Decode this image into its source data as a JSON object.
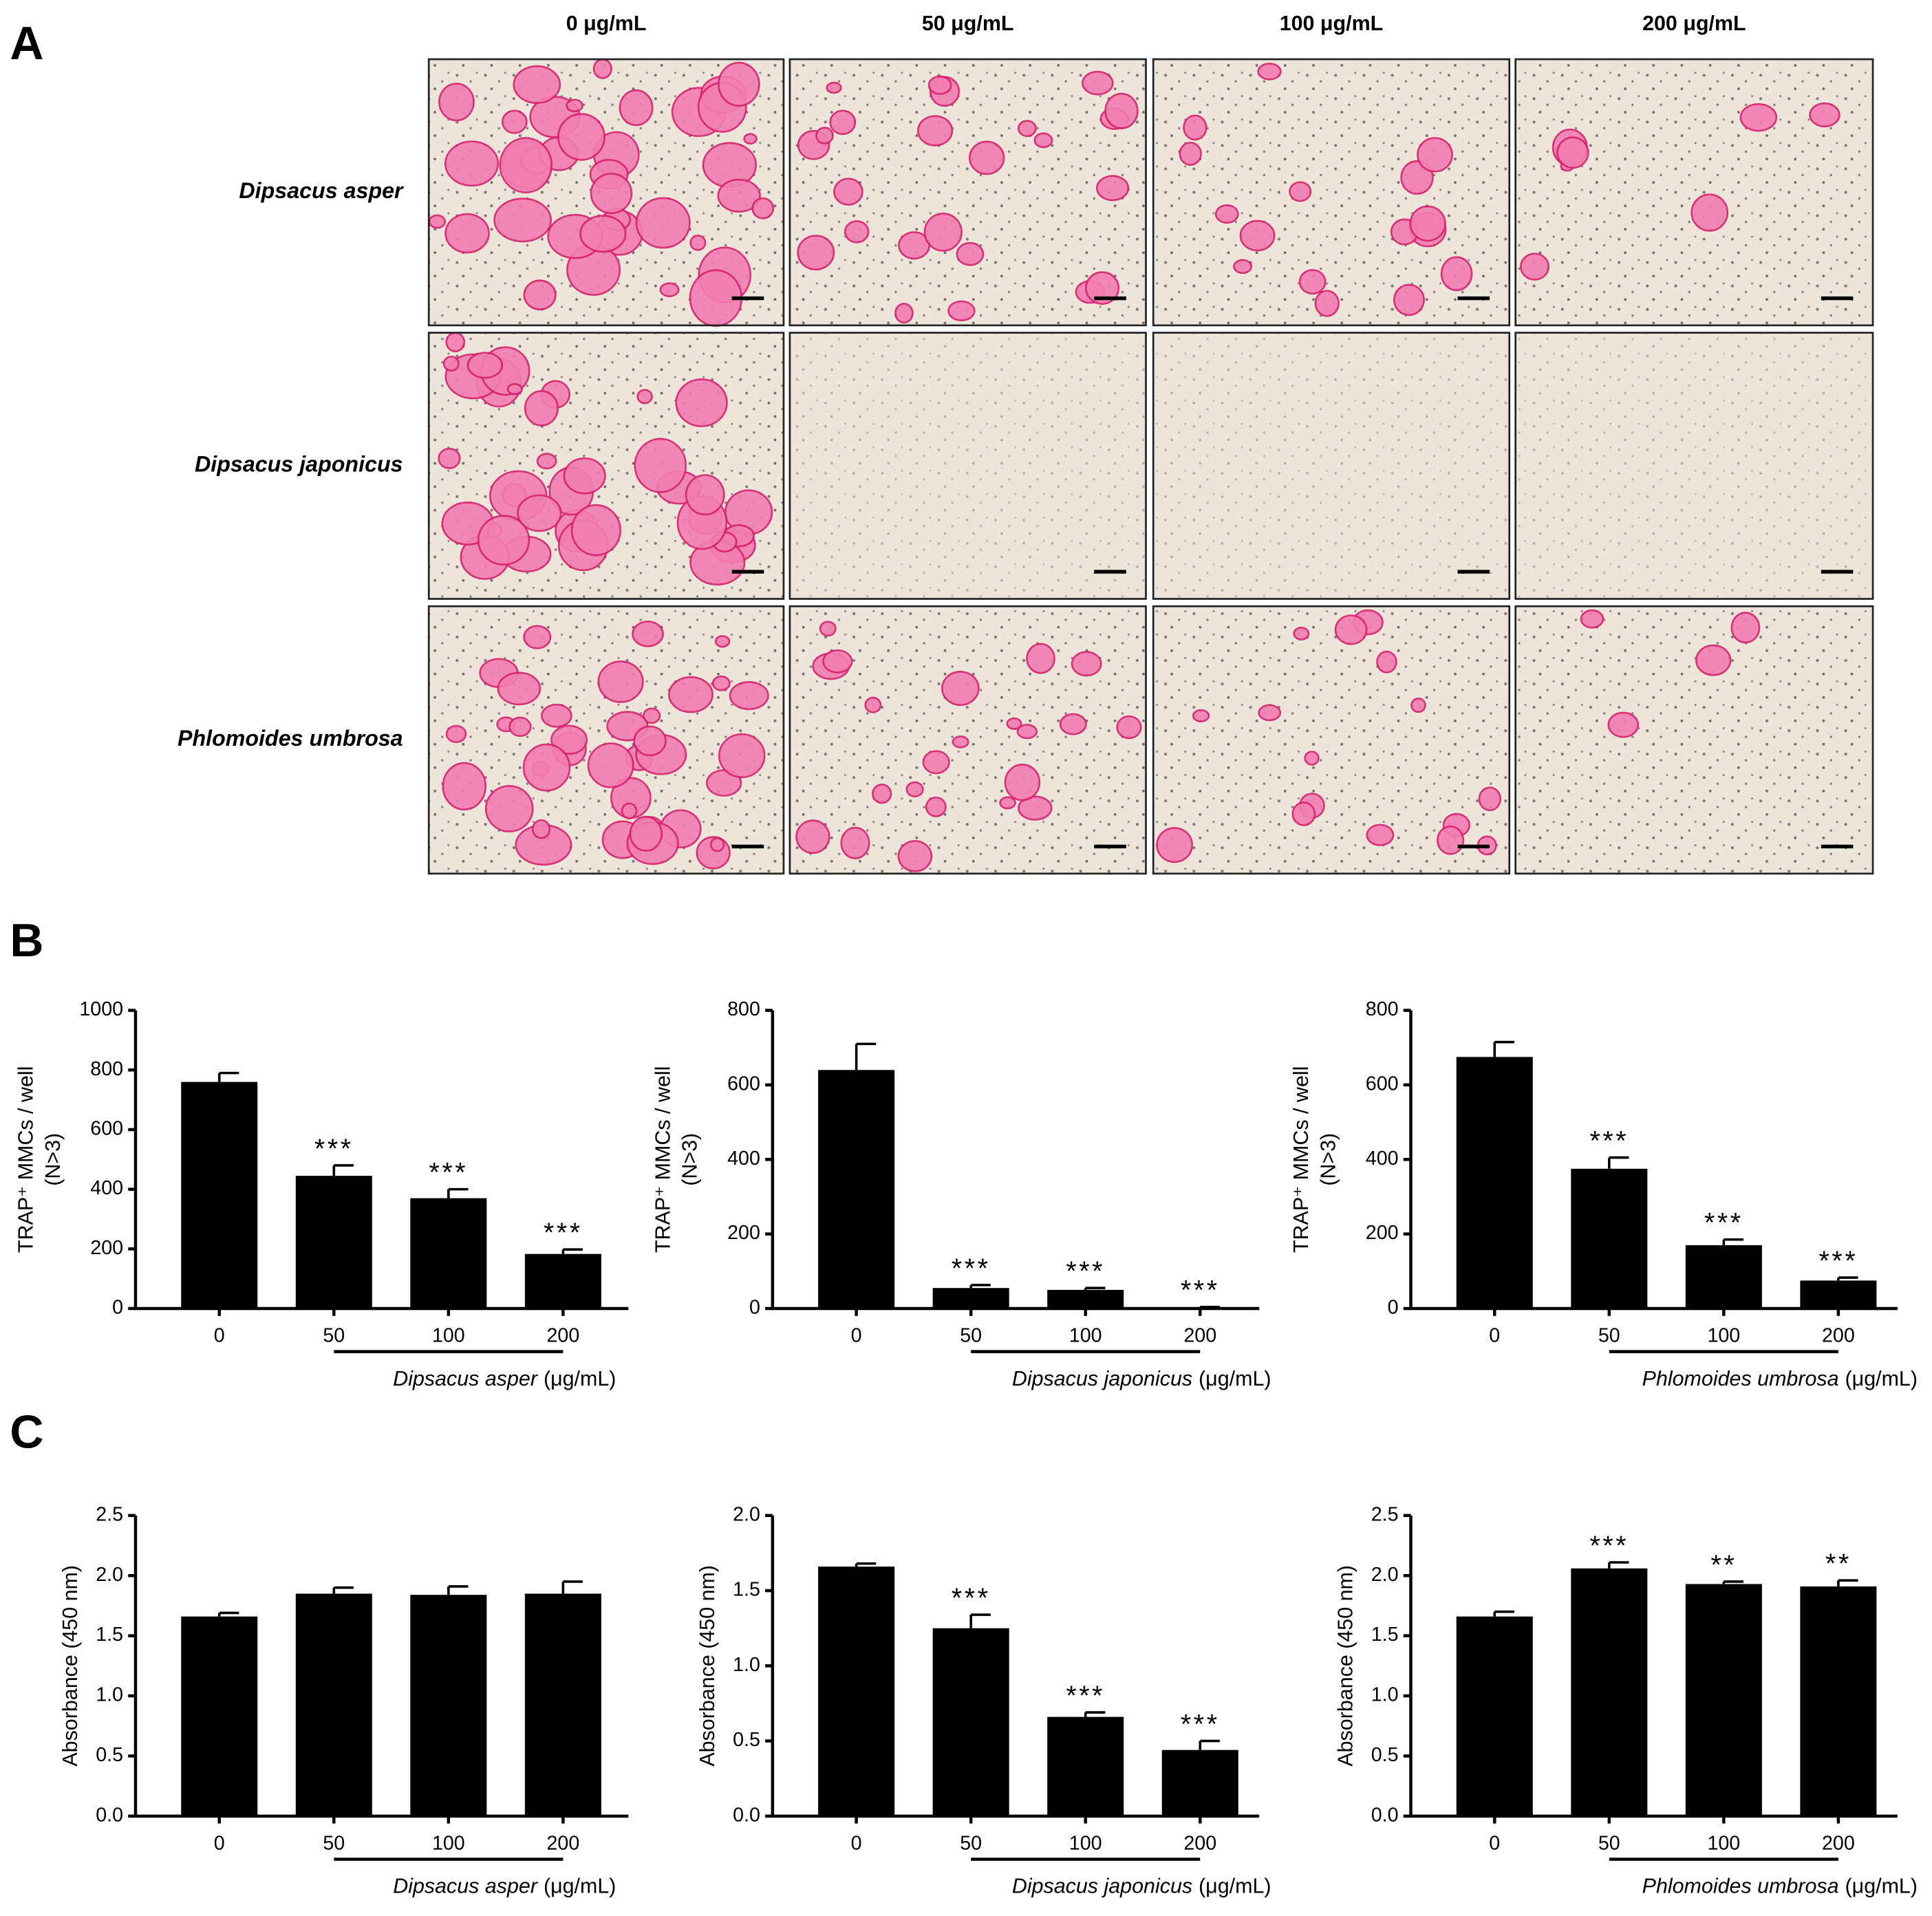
{
  "panel_a": {
    "label": "A",
    "columns": [
      "0 μg/mL",
      "50 μg/mL",
      "100 μg/mL",
      "200 μg/mL"
    ],
    "rows": [
      "Dipsacus asper",
      "Dipsacus japonicus",
      "Phlomoides umbrosa"
    ]
  },
  "panel_b_label": "B",
  "panel_c_label": "C",
  "chart_data": [
    {
      "type": "bar",
      "panel": "B",
      "y_label_lines": [
        "TRAP⁺ MMCs / well",
        "(N>3)"
      ],
      "xlabel_species": "Dipsacus asper",
      "xlabel_unit": "(μg/mL)",
      "categories": [
        "0",
        "50",
        "100",
        "200"
      ],
      "values": [
        760,
        445,
        370,
        183
      ],
      "errors": [
        30,
        35,
        30,
        15
      ],
      "significance": [
        null,
        "***",
        "***",
        "***"
      ],
      "color": "#000000",
      "ylim": [
        0,
        1000
      ],
      "yticks": [
        0,
        200,
        400,
        600,
        800,
        1000
      ]
    },
    {
      "type": "bar",
      "panel": "B",
      "y_label_lines": [
        "TRAP⁺ MMCs / well",
        "(N>3)"
      ],
      "xlabel_species": "Dipsacus japonicus",
      "xlabel_unit": "(μg/mL)",
      "categories": [
        "0",
        "50",
        "100",
        "200"
      ],
      "values": [
        640,
        55,
        50,
        3
      ],
      "errors": [
        70,
        8,
        5,
        1
      ],
      "significance": [
        null,
        "***",
        "***",
        "***"
      ],
      "color": "#000000",
      "ylim": [
        0,
        800
      ],
      "yticks": [
        0,
        200,
        400,
        600,
        800
      ]
    },
    {
      "type": "bar",
      "panel": "B",
      "y_label_lines": [
        "TRAP⁺ MMCs / well",
        "(N>3)"
      ],
      "xlabel_species": "Phlomoides umbrosa",
      "xlabel_unit": "(μg/mL)",
      "categories": [
        "0",
        "50",
        "100",
        "200"
      ],
      "values": [
        675,
        375,
        170,
        75
      ],
      "errors": [
        40,
        30,
        15,
        8
      ],
      "significance": [
        null,
        "***",
        "***",
        "***"
      ],
      "color": "#000000",
      "ylim": [
        0,
        800
      ],
      "yticks": [
        0,
        200,
        400,
        600,
        800
      ]
    },
    {
      "type": "bar",
      "panel": "C",
      "y_label_lines": [
        "Absorbance (450 nm)"
      ],
      "xlabel_species": "Dipsacus asper",
      "xlabel_unit": "(μg/mL)",
      "categories": [
        "0",
        "50",
        "100",
        "200"
      ],
      "values": [
        1.66,
        1.85,
        1.84,
        1.85
      ],
      "errors": [
        0.03,
        0.05,
        0.07,
        0.1
      ],
      "significance": [
        null,
        null,
        null,
        null
      ],
      "color": "#000000",
      "ylim": [
        0,
        2.5
      ],
      "yticks": [
        {
          "value": 0,
          "label": "0.0"
        },
        0.5,
        {
          "value": 1,
          "label": "1.0"
        },
        1.5,
        {
          "value": 2,
          "label": "2.0"
        },
        2.5
      ]
    },
    {
      "type": "bar",
      "panel": "C",
      "y_label_lines": [
        "Absorbance (450 nm)"
      ],
      "xlabel_species": "Dipsacus japonicus",
      "xlabel_unit": "(μg/mL)",
      "categories": [
        "0",
        "50",
        "100",
        "200"
      ],
      "values": [
        1.66,
        1.25,
        0.66,
        0.44
      ],
      "errors": [
        0.02,
        0.09,
        0.03,
        0.06
      ],
      "significance": [
        null,
        "***",
        "***",
        "***"
      ],
      "color": "#000000",
      "ylim": [
        0,
        2
      ],
      "yticks": [
        {
          "value": 0,
          "label": "0.0"
        },
        0.5,
        {
          "value": 1,
          "label": "1.0"
        },
        1.5,
        {
          "value": 2,
          "label": "2.0"
        }
      ]
    },
    {
      "type": "bar",
      "panel": "C",
      "y_label_lines": [
        "Absorbance (450 nm)"
      ],
      "xlabel_species": "Phlomoides umbrosa",
      "xlabel_unit": "(μg/mL)",
      "categories": [
        "0",
        "50",
        "100",
        "200"
      ],
      "values": [
        1.66,
        2.06,
        1.93,
        1.91
      ],
      "errors": [
        0.04,
        0.05,
        0.02,
        0.05
      ],
      "significance": [
        null,
        "***",
        "**",
        "**"
      ],
      "color": "#000000",
      "ylim": [
        0,
        2.5
      ],
      "yticks": [
        {
          "value": 0,
          "label": "0.0"
        },
        0.5,
        {
          "value": 1,
          "label": "1.0"
        },
        1.5,
        {
          "value": 2,
          "label": "2.0"
        },
        2.5
      ]
    }
  ]
}
